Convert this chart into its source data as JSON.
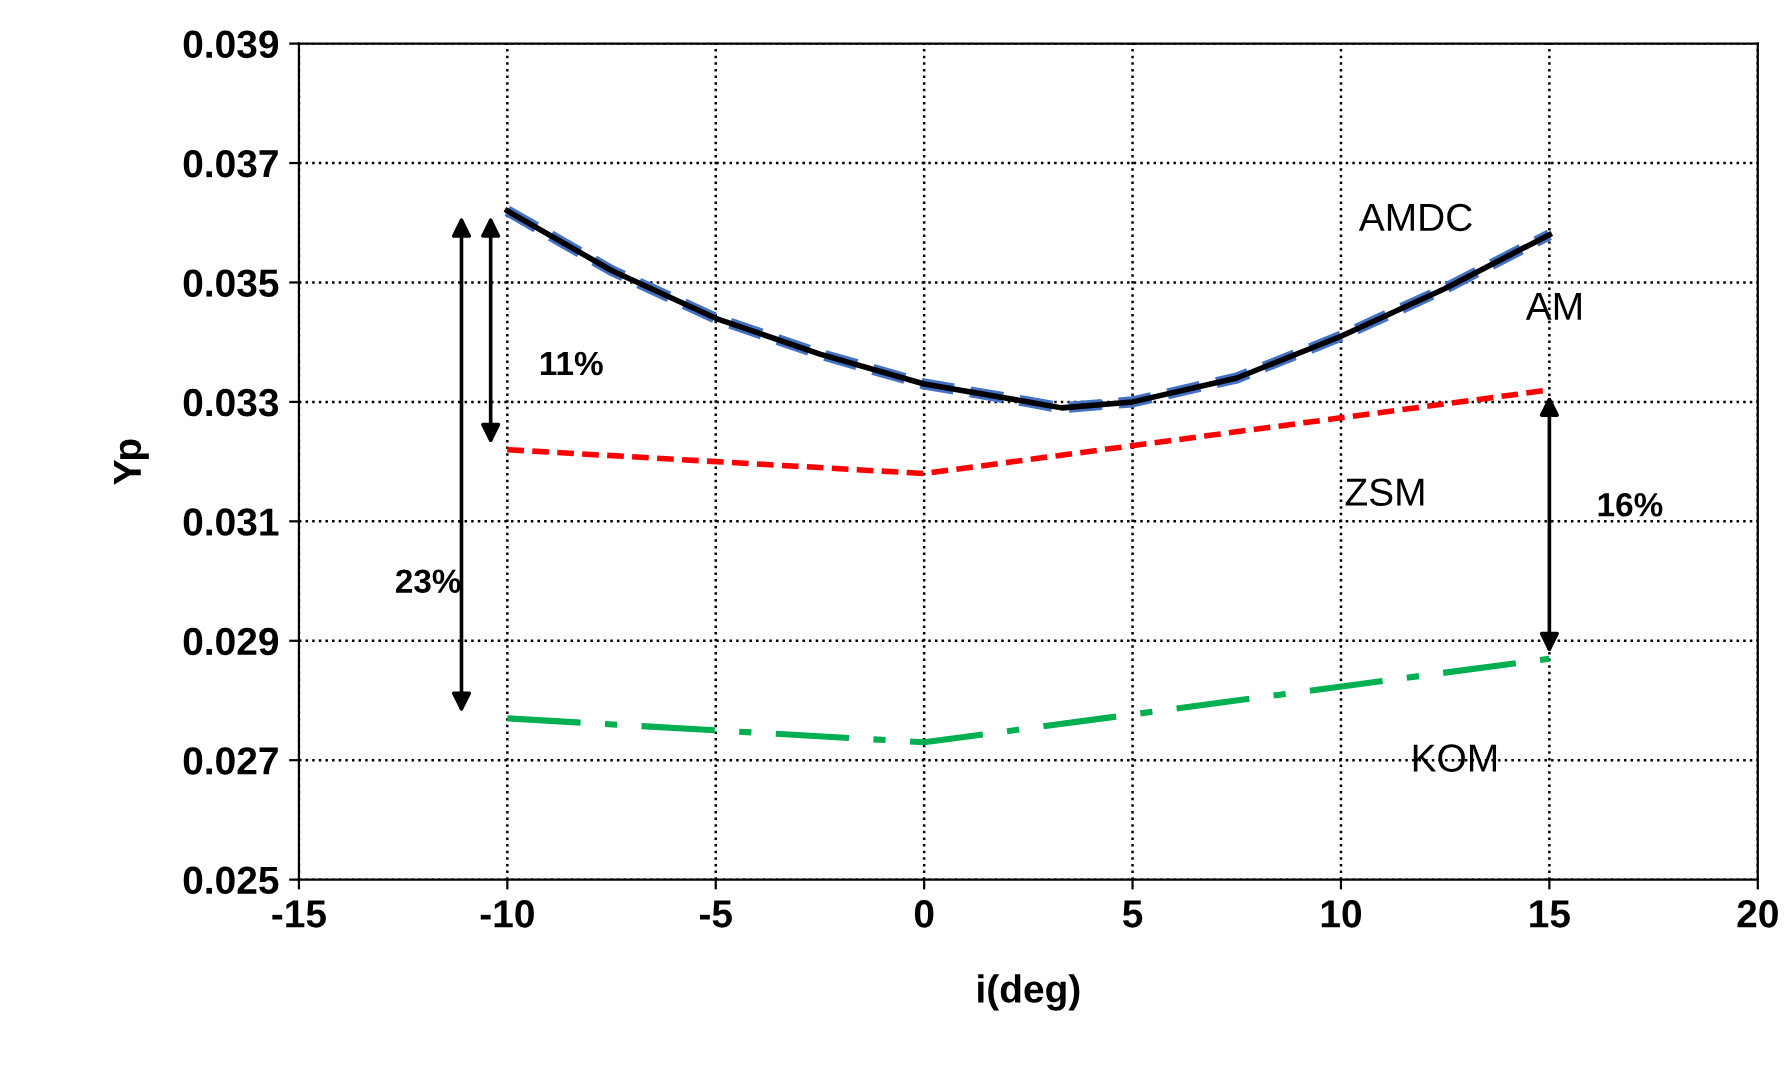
{
  "chart_data": {
    "type": "line",
    "xlabel": "i(deg)",
    "ylabel": "Yp",
    "xlim": [
      -15,
      20
    ],
    "xticks": [
      -15,
      -10,
      -5,
      0,
      5,
      10,
      15,
      20
    ],
    "ylim": [
      0.025,
      0.039
    ],
    "yticks": [
      0.025,
      0.027,
      0.029,
      0.031,
      0.033,
      0.035,
      0.037,
      0.039
    ],
    "grid": true,
    "legend": false,
    "series": [
      {
        "name": "AM",
        "color": "#4472c4",
        "line_style": "dashed",
        "x": [
          -10,
          -7.5,
          -5,
          -2.5,
          0,
          2.5,
          3.3,
          5,
          7.5,
          10,
          12.5,
          15
        ],
        "values": [
          0.0362,
          0.0352,
          0.0344,
          0.0338,
          0.0333,
          0.033,
          0.0329,
          0.033,
          0.0334,
          0.0341,
          0.0349,
          0.0358
        ]
      },
      {
        "name": "AMDC",
        "color": "#000000",
        "line_style": "solid",
        "x": [
          -10,
          -7.5,
          -5,
          -2.5,
          0,
          2.5,
          3.3,
          5,
          7.5,
          10,
          12.5,
          15
        ],
        "values": [
          0.0362,
          0.0352,
          0.0344,
          0.0338,
          0.0333,
          0.033,
          0.0329,
          0.033,
          0.0334,
          0.0341,
          0.0349,
          0.0358
        ]
      },
      {
        "name": "ZSM",
        "color": "#ff0000",
        "line_style": "dashed",
        "x": [
          -10,
          0,
          15
        ],
        "values": [
          0.0322,
          0.0318,
          0.0332
        ]
      },
      {
        "name": "KOM",
        "color": "#00b050",
        "line_style": "dashdot",
        "x": [
          -10,
          0,
          15
        ],
        "values": [
          0.0277,
          0.0273,
          0.0287
        ]
      }
    ],
    "annotations": [
      "11%",
      "23%",
      "16%"
    ]
  }
}
